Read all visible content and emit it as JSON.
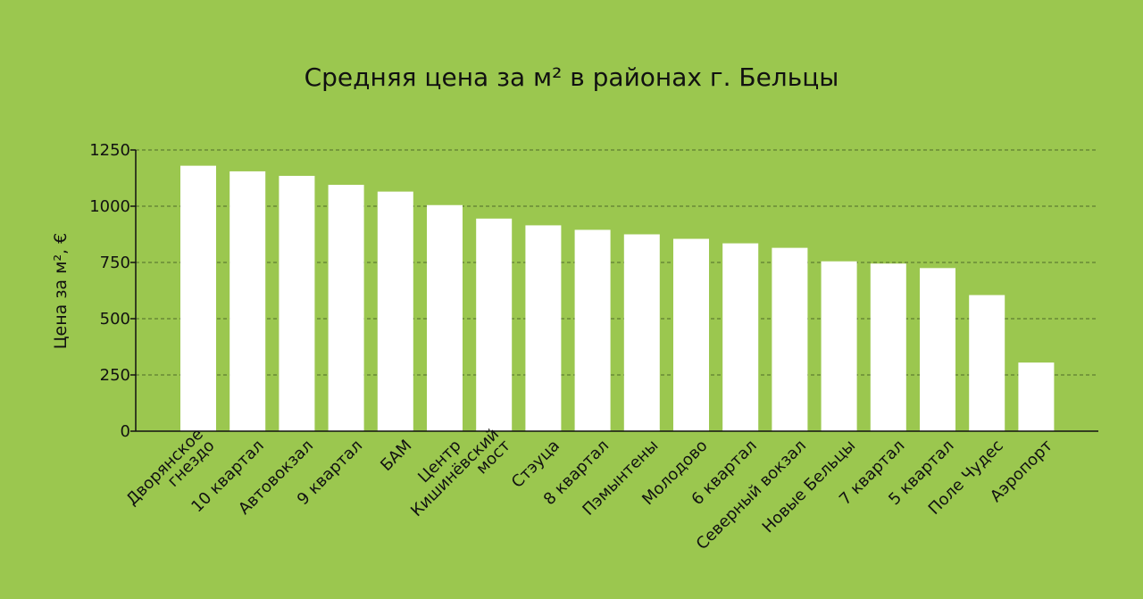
{
  "chart_data": {
    "type": "bar",
    "title": "Средняя цена за м² в районах г. Бельцы",
    "xlabel": "",
    "ylabel": "Цена за м², €",
    "ylim": [
      0,
      1250
    ],
    "yticks": [
      0,
      250,
      500,
      750,
      1000,
      1250
    ],
    "grid": "horizontal dashed",
    "categories": [
      "Дворянское\nгнездо",
      "10 квартал",
      "Автовокзал",
      "9 квартал",
      "БАМ",
      "Центр",
      "Кишинёвский\nмост",
      "Стэуца",
      "8 квартал",
      "Пэмынтены",
      "Молодово",
      "6 квартал",
      "Северный вокзал",
      "Новые Бельцы",
      "7 квартал",
      "5 квартал",
      "Поле Чудес",
      "Аэропорт"
    ],
    "values": [
      1180,
      1155,
      1135,
      1095,
      1065,
      1005,
      945,
      915,
      895,
      875,
      855,
      835,
      815,
      755,
      745,
      725,
      605,
      305
    ],
    "colors": {
      "background": "#9bc74f",
      "bar": "#ffffff",
      "grid": "#4f6b2a",
      "axis": "#111111"
    }
  }
}
